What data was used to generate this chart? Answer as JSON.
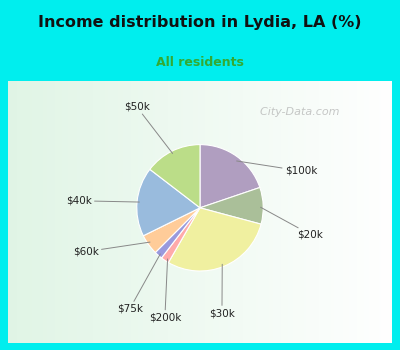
{
  "title": "Income distribution in Lydia, LA (%)",
  "subtitle": "All residents",
  "title_color": "#111111",
  "subtitle_color": "#33aa33",
  "background_top": "#00eeee",
  "chart_bg_color": "#e0f5ec",
  "slices": [
    {
      "label": "$100k",
      "value": 19,
      "color": "#b09ec0"
    },
    {
      "label": "$20k",
      "value": 9,
      "color": "#aabf99"
    },
    {
      "label": "$30k",
      "value": 28,
      "color": "#f0f0a0"
    },
    {
      "label": "$200k",
      "value": 2,
      "color": "#ffaaaa"
    },
    {
      "label": "$75k",
      "value": 2,
      "color": "#9999dd"
    },
    {
      "label": "$60k",
      "value": 5,
      "color": "#ffcc99"
    },
    {
      "label": "$40k",
      "value": 17,
      "color": "#99bbdd"
    },
    {
      "label": "$50k",
      "value": 14,
      "color": "#bbdd88"
    }
  ],
  "label_fontsize": 8,
  "watermark": "  City-Data.com"
}
